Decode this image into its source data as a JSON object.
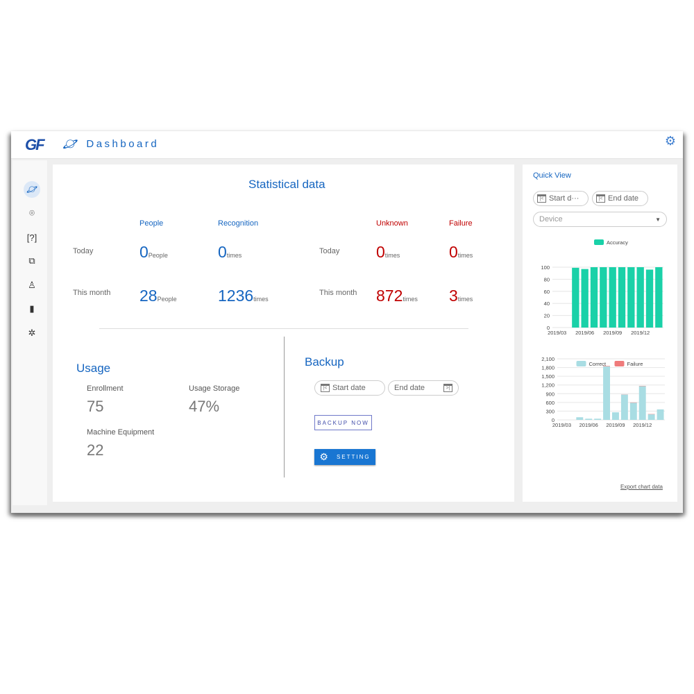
{
  "header": {
    "logo": "GF",
    "title": "Dashboard"
  },
  "sidebar": {
    "items": [
      {
        "icon": "dashboard-icon",
        "active": true
      },
      {
        "icon": "face-scan-icon"
      },
      {
        "icon": "unknown-face-icon"
      },
      {
        "icon": "report-icon"
      },
      {
        "icon": "user-icon"
      },
      {
        "icon": "device-icon"
      },
      {
        "icon": "settings-aperture-icon"
      }
    ]
  },
  "stats": {
    "title": "Statistical data",
    "cols": [
      "People",
      "Recognition",
      "Unknown",
      "Failure"
    ],
    "row_today": "Today",
    "row_month": "This month",
    "today": {
      "people": "0",
      "people_unit": "People",
      "recognition": "0",
      "recognition_unit": "times",
      "unknown": "0",
      "unknown_unit": "times",
      "failure": "0",
      "failure_unit": "times"
    },
    "month": {
      "people": "28",
      "people_unit": "People",
      "recognition": "1236",
      "recognition_unit": "times",
      "unknown": "872",
      "unknown_unit": "times",
      "failure": "3",
      "failure_unit": "times"
    }
  },
  "usage": {
    "title": "Usage",
    "enrollment_label": "Enrollment",
    "enrollment": "75",
    "storage_label": "Usage Storage",
    "storage": "47%",
    "machine_label": "Machine Equipment",
    "machine": "22"
  },
  "backup": {
    "title": "Backup",
    "start_placeholder": "Start date",
    "end_placeholder": "End date",
    "backup_now": "BACKUP NOW",
    "setting": "SETTING"
  },
  "quick_view": {
    "title": "Quick View",
    "start_placeholder": "Start d···",
    "end_placeholder": "End date",
    "device_placeholder": "Device",
    "export": "Export chart data"
  },
  "chart_data": [
    {
      "type": "bar",
      "categories": [
        "2019/03",
        "2019/04",
        "2019/05",
        "2019/06",
        "2019/07",
        "2019/08",
        "2019/09",
        "2019/10",
        "2019/11",
        "2019/12",
        "2020/01",
        "2020/02"
      ],
      "tick_labels": [
        "2019/03",
        "2019/06",
        "2019/09",
        "2019/12"
      ],
      "series": [
        {
          "name": "Accuracy",
          "color": "#1ad1a8",
          "values": [
            null,
            null,
            99,
            97,
            100,
            100,
            100,
            100,
            100,
            100,
            96,
            100
          ]
        }
      ],
      "ylim": [
        0,
        100
      ],
      "yticks": [
        0,
        20,
        40,
        60,
        80,
        100
      ],
      "legend": "top",
      "grid": true
    },
    {
      "type": "bar",
      "stacked": true,
      "categories": [
        "2019/03",
        "2019/04",
        "2019/05",
        "2019/06",
        "2019/07",
        "2019/08",
        "2019/09",
        "2019/10",
        "2019/11",
        "2019/12",
        "2020/01",
        "2020/02"
      ],
      "tick_labels": [
        "2019/03",
        "2019/06",
        "2019/09",
        "2019/12"
      ],
      "series": [
        {
          "name": "Correct",
          "color": "#a9dde3",
          "values": [
            null,
            null,
            90,
            40,
            40,
            1840,
            260,
            870,
            590,
            1160,
            190,
            360
          ]
        },
        {
          "name": "Failure",
          "color": "#ef7b7b",
          "values": [
            null,
            null,
            0,
            0,
            0,
            15,
            0,
            5,
            10,
            10,
            10,
            0
          ]
        }
      ],
      "ylim": [
        0,
        2100
      ],
      "yticks": [
        "0",
        "300",
        "600",
        "900",
        "1,200",
        "1,500",
        "1,800",
        "2,100"
      ],
      "legend": "top",
      "grid": true
    }
  ]
}
